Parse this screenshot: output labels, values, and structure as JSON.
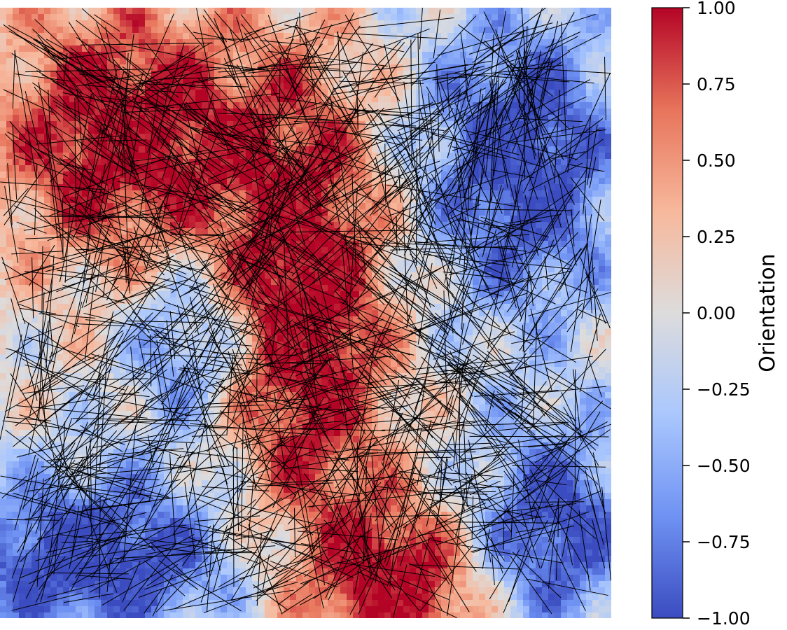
{
  "chart_data": {
    "type": "heatmap",
    "title": "",
    "description_overlay": "black line-segment orientation field",
    "colormap": "coolwarm",
    "colormap_stops": [
      "#3b4cc0",
      "#6f92f3",
      "#aac7fd",
      "#dddcdc",
      "#f7b89c",
      "#e7745b",
      "#b40426"
    ],
    "line_color": "#000000",
    "axes_visible": false,
    "colorbar": {
      "label": "Orientation",
      "range": [
        -1.0,
        1.0
      ],
      "ticks": [
        1.0,
        0.75,
        0.5,
        0.25,
        0.0,
        -0.25,
        -0.5,
        -0.75,
        -1.0
      ],
      "tick_labels": [
        "1.00",
        "0.75",
        "0.50",
        "0.25",
        "0.00",
        "−0.25",
        "−0.50",
        "−0.75",
        "−1.00"
      ]
    },
    "regions": [
      {
        "name": "top-left",
        "value": 0.85
      },
      {
        "name": "top-right",
        "value": -0.7
      },
      {
        "name": "center",
        "value": 0.9
      },
      {
        "name": "bottom-left",
        "value": -0.9
      },
      {
        "name": "bottom-center",
        "value": 0.95
      },
      {
        "name": "bottom-right",
        "value": -0.8
      }
    ]
  }
}
